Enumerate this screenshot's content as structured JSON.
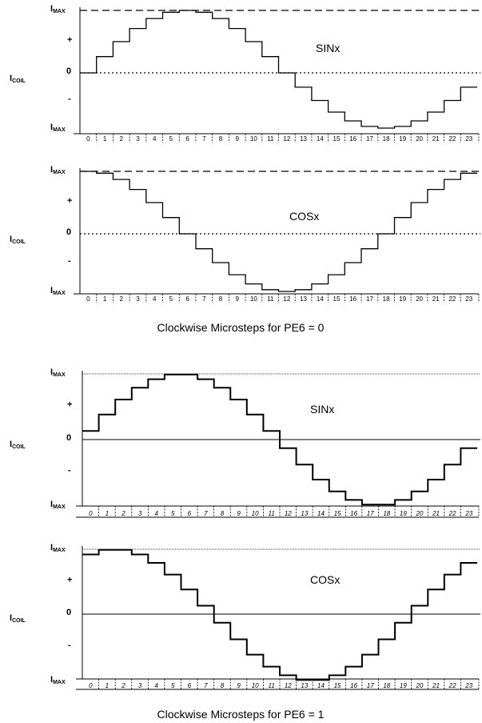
{
  "labels": {
    "icoil": "I",
    "icoil_sub": "COIL",
    "imax": "I",
    "imax_sub": "MAX",
    "plus": "+",
    "zero": "0",
    "minus": "-"
  },
  "captions": [
    "Clockwise Microsteps for PE6 = 0",
    "Clockwise Microsteps for PE6 = 1"
  ],
  "chart_data": [
    {
      "type": "line",
      "step": "post",
      "title": "SINx",
      "caption": "Clockwise Microsteps for PE6 = 0",
      "ylabel": "ICOIL",
      "ylim": [
        -1,
        1
      ],
      "yticks": [
        "IMAX",
        "+",
        "0",
        "-",
        "IMAX"
      ],
      "categories": [
        "0",
        "1",
        "2",
        "3",
        "4",
        "5",
        "6",
        "7",
        "8",
        "9",
        "10",
        "11",
        "12",
        "13",
        "14",
        "15",
        "16",
        "17",
        "18",
        "19",
        "20",
        "21",
        "22",
        "23"
      ],
      "values": [
        0,
        0.26,
        0.5,
        0.71,
        0.87,
        0.97,
        1,
        0.97,
        0.87,
        0.71,
        0.5,
        0.26,
        0,
        -0.26,
        -0.5,
        -0.71,
        -0.87,
        -0.97,
        -1,
        -0.97,
        -0.87,
        -0.71,
        -0.5,
        -0.26
      ]
    },
    {
      "type": "line",
      "step": "post",
      "title": "COSx",
      "caption": "Clockwise Microsteps for PE6 = 0",
      "ylabel": "ICOIL",
      "ylim": [
        -1,
        1
      ],
      "yticks": [
        "IMAX",
        "+",
        "0",
        "-",
        "IMAX"
      ],
      "categories": [
        "0",
        "1",
        "2",
        "3",
        "4",
        "5",
        "6",
        "7",
        "8",
        "9",
        "10",
        "11",
        "12",
        "13",
        "14",
        "15",
        "16",
        "17",
        "18",
        "19",
        "20",
        "21",
        "22",
        "23"
      ],
      "values": [
        1,
        0.97,
        0.87,
        0.71,
        0.5,
        0.26,
        0,
        -0.26,
        -0.5,
        -0.71,
        -0.87,
        -0.97,
        -1,
        -0.97,
        -0.87,
        -0.71,
        -0.5,
        -0.26,
        0,
        0.26,
        0.5,
        0.71,
        0.87,
        0.97
      ]
    },
    {
      "type": "line",
      "step": "post",
      "title": "SINx",
      "caption": "Clockwise Microsteps for PE6 = 1",
      "ylabel": "ICOIL",
      "ylim": [
        -1,
        1
      ],
      "yticks": [
        "IMAX",
        "+",
        "0",
        "-",
        "IMAX"
      ],
      "categories": [
        "0",
        "1",
        "2",
        "3",
        "4",
        "5",
        "6",
        "7",
        "8",
        "9",
        "10",
        "11",
        "12",
        "13",
        "14",
        "15",
        "16",
        "17",
        "18",
        "19",
        "20",
        "21",
        "22",
        "23"
      ],
      "values": [
        0.13,
        0.38,
        0.61,
        0.79,
        0.92,
        0.99,
        0.99,
        0.92,
        0.79,
        0.61,
        0.38,
        0.13,
        -0.13,
        -0.38,
        -0.61,
        -0.79,
        -0.92,
        -0.99,
        -0.99,
        -0.92,
        -0.79,
        -0.61,
        -0.38,
        -0.13
      ]
    },
    {
      "type": "line",
      "step": "post",
      "title": "COSx",
      "caption": "Clockwise Microsteps for PE6 = 1",
      "ylabel": "ICOIL",
      "ylim": [
        -1,
        1
      ],
      "yticks": [
        "IMAX",
        "+",
        "0",
        "-",
        "IMAX"
      ],
      "categories": [
        "0",
        "1",
        "2",
        "3",
        "4",
        "5",
        "6",
        "7",
        "8",
        "9",
        "10",
        "11",
        "12",
        "13",
        "14",
        "15",
        "16",
        "17",
        "18",
        "19",
        "20",
        "21",
        "22",
        "23"
      ],
      "values": [
        0.92,
        0.99,
        0.99,
        0.92,
        0.79,
        0.61,
        0.38,
        0.13,
        -0.13,
        -0.38,
        -0.61,
        -0.79,
        -0.92,
        -0.99,
        -0.99,
        -0.92,
        -0.79,
        -0.61,
        -0.38,
        -0.13,
        0.13,
        0.38,
        0.61,
        0.79
      ]
    }
  ]
}
